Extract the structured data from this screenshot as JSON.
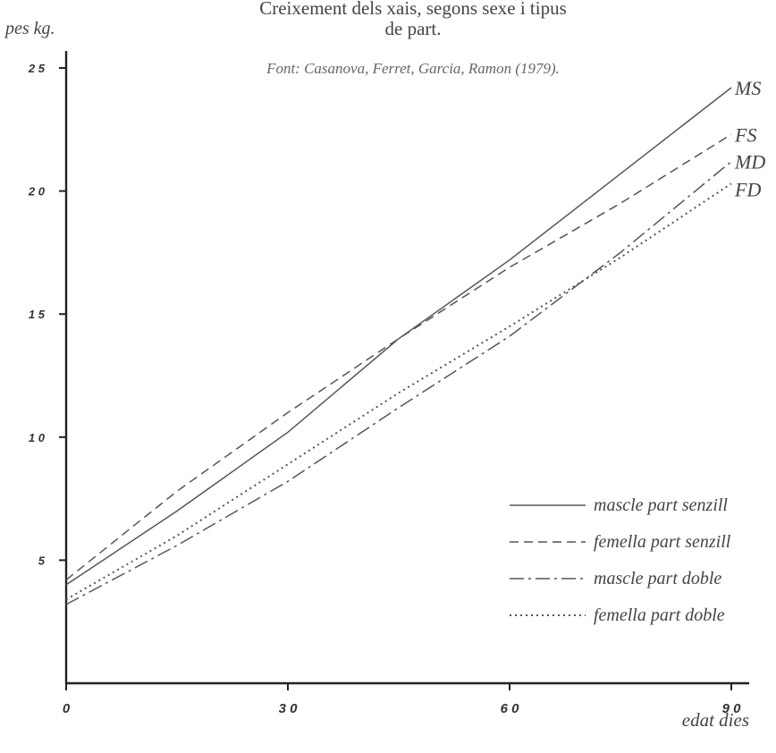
{
  "chart_data": {
    "type": "line",
    "title": "Creixement dels xais, segons sexe i tipus de part.",
    "title_lines": [
      "Creixement dels xais, segons sexe i tipus",
      "de part."
    ],
    "source": "Font: Casanova, Ferret, Garcia, Ramon (1979).",
    "ylabel": "pes kg.",
    "xlabel": "edat dies",
    "xlim": [
      0,
      93
    ],
    "ylim": [
      0,
      26
    ],
    "x_ticks": [
      {
        "value": 0,
        "label": "0"
      },
      {
        "value": 30,
        "label": "3 0"
      },
      {
        "value": 60,
        "label": "6 0"
      },
      {
        "value": 90,
        "label": "9 0"
      }
    ],
    "y_ticks": [
      {
        "value": 5,
        "label": "5"
      },
      {
        "value": 10,
        "label": "1 0"
      },
      {
        "value": 15,
        "label": "1 5"
      },
      {
        "value": 20,
        "label": "2 0"
      },
      {
        "value": 25,
        "label": "2 5"
      }
    ],
    "grid": false,
    "legend_position": "bottom-right",
    "series": [
      {
        "name": "mascle part senzill",
        "end_label": "MS",
        "dash": "solid",
        "color": "#555555",
        "points": [
          [
            0,
            4.0
          ],
          [
            15,
            7.0
          ],
          [
            30,
            10.2
          ],
          [
            45,
            14.0
          ],
          [
            60,
            17.2
          ],
          [
            75,
            20.7
          ],
          [
            90,
            24.2
          ]
        ]
      },
      {
        "name": "femella part senzill",
        "end_label": "FS",
        "dash": "dashed",
        "color": "#555555",
        "points": [
          [
            0,
            4.2
          ],
          [
            15,
            7.8
          ],
          [
            30,
            11.0
          ],
          [
            45,
            14.0
          ],
          [
            60,
            16.9
          ],
          [
            75,
            19.5
          ],
          [
            90,
            22.3
          ]
        ]
      },
      {
        "name": "mascle part doble",
        "end_label": "MD",
        "dash": "dashdot",
        "color": "#555555",
        "points": [
          [
            0,
            3.2
          ],
          [
            15,
            5.6
          ],
          [
            30,
            8.2
          ],
          [
            45,
            11.2
          ],
          [
            60,
            14.1
          ],
          [
            75,
            17.5
          ],
          [
            90,
            21.2
          ]
        ]
      },
      {
        "name": "femella part doble",
        "end_label": "FD",
        "dash": "dotted",
        "color": "#555555",
        "points": [
          [
            0,
            3.4
          ],
          [
            15,
            6.0
          ],
          [
            30,
            8.9
          ],
          [
            45,
            11.8
          ],
          [
            60,
            14.5
          ],
          [
            75,
            17.3
          ],
          [
            90,
            20.3
          ]
        ]
      }
    ]
  }
}
